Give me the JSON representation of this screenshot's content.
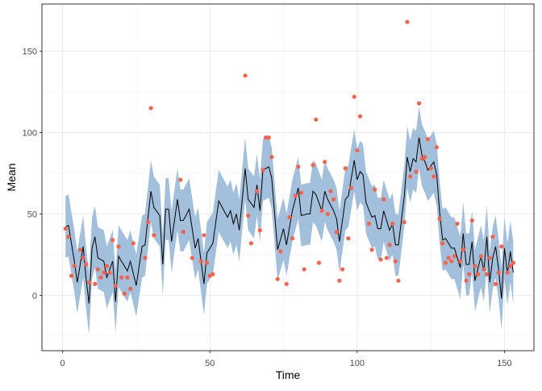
{
  "chart_data": {
    "type": "line",
    "xlabel": "Time",
    "ylabel": "Mean",
    "xlim": [
      -7,
      160
    ],
    "ylim": [
      -34,
      179
    ],
    "x_ticks": [
      "0",
      "50",
      "100",
      "150"
    ],
    "y_ticks": [
      "0",
      "50",
      "100",
      "150"
    ],
    "grid": true,
    "colors": {
      "ribbon": "#a2bfdb",
      "line": "#000000",
      "points": "#f8624a",
      "grid": "#ebebeb",
      "border": "#333333"
    },
    "mean_line": {
      "t": [
        1,
        2,
        4,
        5,
        7,
        8,
        9,
        10,
        11,
        12,
        14,
        15,
        17,
        18,
        19,
        22,
        23,
        25,
        27,
        28,
        30,
        31,
        33,
        34,
        35,
        36,
        37,
        39,
        40,
        41,
        43,
        45,
        46,
        48,
        49,
        51,
        53,
        56,
        57,
        58,
        59,
        60,
        62,
        63,
        65,
        66,
        67,
        68,
        70,
        71,
        73,
        75,
        76,
        78,
        80,
        81,
        83,
        84,
        85,
        86,
        88,
        89,
        90,
        92,
        93,
        94,
        96,
        97,
        99,
        100,
        101,
        102,
        103,
        105,
        106,
        107,
        108,
        109,
        111,
        112,
        113,
        114,
        116,
        117,
        118,
        119,
        120,
        121,
        122,
        123,
        124,
        126,
        127,
        128,
        129,
        130,
        132,
        133,
        135,
        136,
        137,
        138,
        139,
        140,
        142,
        143,
        144,
        145,
        146,
        147,
        148,
        149,
        150,
        151,
        152,
        153
      ],
      "mean": [
        42,
        43,
        21,
        8,
        30,
        10,
        -5,
        29,
        36,
        23,
        21,
        11,
        21,
        -4,
        24,
        15,
        21,
        6,
        30,
        31,
        64,
        54,
        49,
        19,
        53,
        53,
        33,
        59,
        46,
        46,
        53,
        29,
        35,
        7,
        26,
        32,
        58,
        48,
        52,
        44,
        50,
        40,
        78,
        59,
        54,
        68,
        52,
        77,
        79,
        72,
        28,
        41,
        31,
        52,
        66,
        49,
        50,
        50,
        64,
        62,
        52,
        64,
        59,
        52,
        47,
        33,
        59,
        61,
        83,
        71,
        76,
        74,
        57,
        48,
        49,
        41,
        41,
        52,
        40,
        44,
        31,
        31,
        61,
        85,
        76,
        84,
        82,
        97,
        86,
        82,
        77,
        82,
        74,
        51,
        34,
        35,
        29,
        29,
        17,
        38,
        19,
        19,
        33,
        9,
        24,
        15,
        36,
        8,
        23,
        30,
        16,
        -2,
        29,
        13,
        27,
        14
      ]
    },
    "ribbon": {
      "half_width": 19
    },
    "observations": {
      "t": [
        1,
        2,
        3,
        4,
        6,
        7,
        8,
        9,
        11,
        12,
        13,
        14,
        15,
        16,
        17,
        18,
        19,
        20,
        21,
        22,
        23,
        24,
        28,
        29,
        30,
        31,
        40,
        41,
        44,
        47,
        48,
        49,
        50,
        51,
        62,
        63,
        64,
        66,
        67,
        68,
        69,
        70,
        71,
        73,
        74,
        76,
        77,
        78,
        79,
        80,
        81,
        82,
        85,
        86,
        87,
        88,
        89,
        90,
        91,
        92,
        93,
        94,
        95,
        96,
        97,
        98,
        99,
        100,
        101,
        104,
        105,
        106,
        108,
        109,
        110,
        111,
        112,
        113,
        114,
        116,
        117,
        118,
        120,
        121,
        122,
        123,
        124,
        125,
        126,
        127,
        128,
        129,
        130,
        131,
        132,
        133,
        134,
        135,
        136,
        137,
        138,
        139,
        140,
        141,
        142,
        143,
        144,
        145,
        146,
        147,
        148,
        149,
        151,
        152,
        153
      ],
      "value": [
        41,
        36,
        12,
        18,
        28,
        23,
        19,
        8,
        7,
        16,
        11,
        14,
        18,
        14,
        34,
        6,
        30,
        11,
        1,
        11,
        4,
        32,
        23,
        45,
        115,
        37,
        71,
        39,
        23,
        21,
        37,
        20,
        12,
        13,
        135,
        49,
        32,
        64,
        40,
        77,
        97,
        97,
        85,
        10,
        27,
        7,
        48,
        35,
        61,
        79,
        63,
        16,
        80,
        108,
        20,
        52,
        82,
        50,
        64,
        59,
        39,
        9,
        16,
        78,
        35,
        66,
        122,
        89,
        110,
        44,
        28,
        65,
        22,
        59,
        23,
        31,
        44,
        21,
        9,
        45,
        168,
        73,
        76,
        118,
        84,
        85,
        96,
        78,
        73,
        91,
        47,
        32,
        20,
        23,
        21,
        24,
        44,
        21,
        28,
        9,
        13,
        46,
        18,
        13,
        24,
        16,
        13,
        23,
        36,
        7,
        14,
        30,
        14,
        18,
        20
      ]
    }
  }
}
